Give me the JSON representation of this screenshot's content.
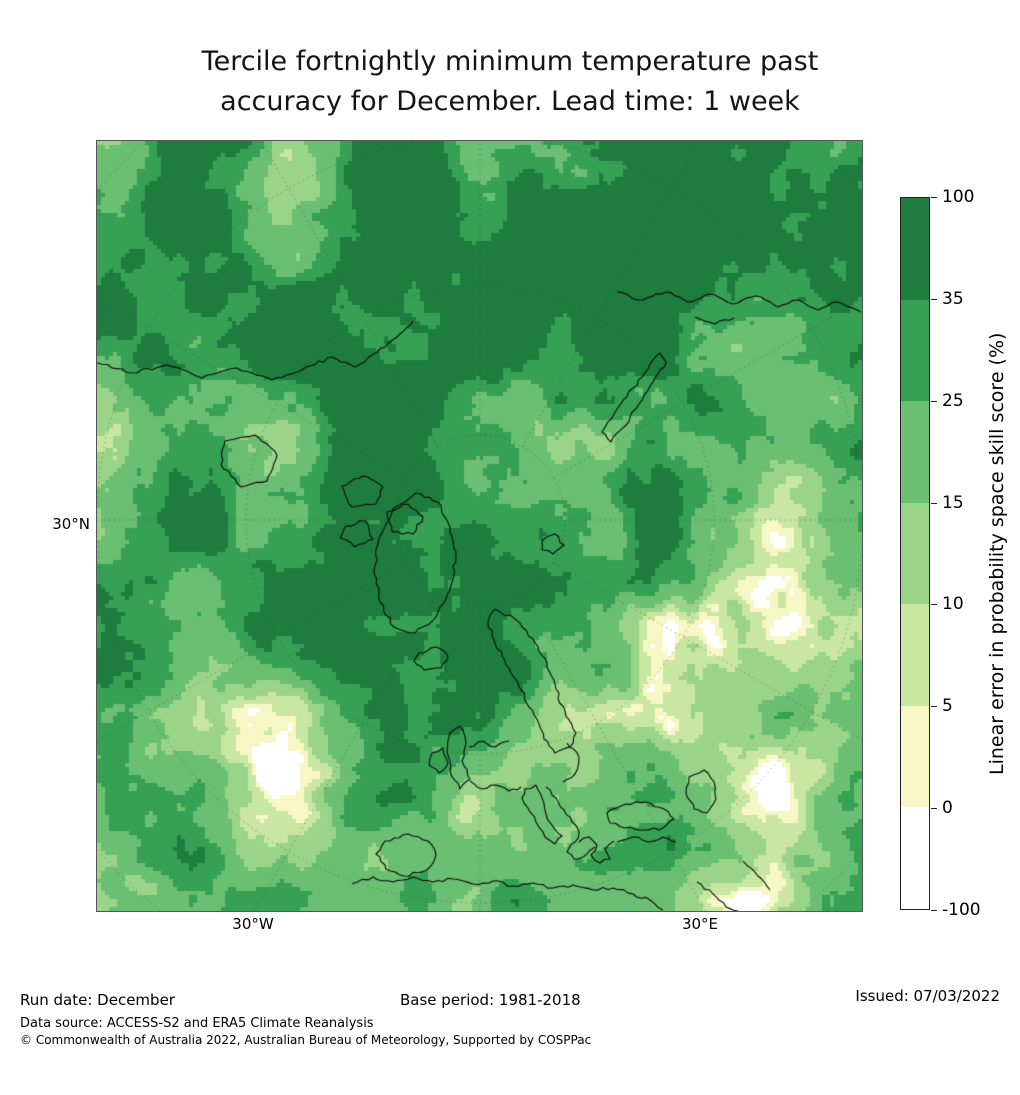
{
  "title": {
    "line1": "Tercile fortnightly minimum temperature past",
    "line2": "accuracy for December. Lead time: 1 week"
  },
  "map": {
    "lat_label": "30°N",
    "lon_label_west": "30°W",
    "lon_label_east": "30°E"
  },
  "colorbar": {
    "label": "Linear error in probability space skill score (%)",
    "tick_labels": [
      "100",
      "35",
      "25",
      "15",
      "10",
      "5",
      "0",
      "-100"
    ],
    "segment_colors_top_to_bottom": [
      "#1e7d3e",
      "#36a055",
      "#6abf72",
      "#9ad489",
      "#c9e7a2",
      "#f7f7c6",
      "#ffffff"
    ]
  },
  "footer": {
    "run_date": "Run date: December",
    "base_period": "Base period: 1981-2018",
    "issued": "Issued: 07/03/2022",
    "data_source": "Data source: ACCESS-S2 and ERA5 Climate Reanalysis",
    "copyright": "© Commonwealth of Australia 2022, Australian Bureau of Meteorology, Supported by COSPPac"
  },
  "chart_data": {
    "type": "heatmap",
    "title": "Tercile fortnightly minimum temperature past accuracy for December. Lead time: 1 week",
    "projection": "north polar stereographic map, Northern Hemisphere (Europe/Atlantic centered down)",
    "value_label": "Linear error in probability space skill score (%)",
    "value_range": [
      -100,
      100
    ],
    "colorbar_boundaries": [
      100,
      35,
      25,
      15,
      10,
      5,
      0,
      -100
    ],
    "colorbar_colors_top_to_bottom": [
      "#1e7d3e",
      "#36a055",
      "#6abf72",
      "#9ad489",
      "#c9e7a2",
      "#f7f7c6",
      "#ffffff"
    ],
    "graticule_labels": [
      "30°N",
      "30°W",
      "30°E"
    ],
    "legend_position": "right",
    "grid": "dotted graticule circles and meridians every 30 degrees",
    "summary": "Mostly 15-35% skill (mid greens); high skill (>35%, dark green) over Arctic top, northern Canada/Greenland and Norwegian Sea; low skill (0-10%, pale yellow/white) patches over central Asia right side and near the pole"
  }
}
